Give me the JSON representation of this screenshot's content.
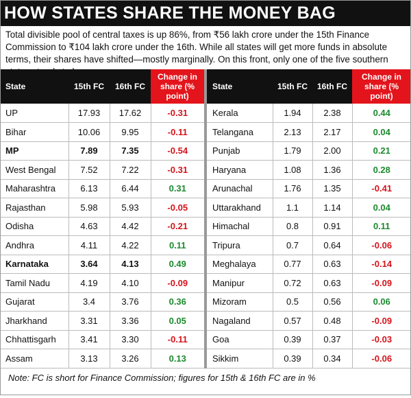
{
  "header": {
    "title": "HOW STATES SHARE THE MONEY BAG"
  },
  "intro": "Total divisible pool of central taxes is up 86%, from ₹56 lakh crore under the 15th Finance Commission to ₹104 lakh crore under the 16th. While all states will get more funds in absolute terms, their shares have shifted—mostly marginally. On this front, only one of the five southern states stands to lose",
  "columns": [
    "State",
    "15th FC",
    "16th FC",
    "Change in share (% point)"
  ],
  "tables": [
    {
      "rows": [
        [
          "UP",
          "17.93",
          "17.62",
          "-0.31"
        ],
        [
          "Bihar",
          "10.06",
          "9.95",
          "-0.11"
        ],
        [
          "MP",
          "7.89",
          "7.35",
          "-0.54"
        ],
        [
          "West Bengal",
          "7.52",
          "7.22",
          "-0.31"
        ],
        [
          "Maharashtra",
          "6.13",
          "6.44",
          "0.31"
        ],
        [
          "Rajasthan",
          "5.98",
          "5.93",
          "-0.05"
        ],
        [
          "Odisha",
          "4.63",
          "4.42",
          "-0.21"
        ],
        [
          "Andhra",
          "4.11",
          "4.22",
          "0.11"
        ],
        [
          "Karnataka",
          "3.64",
          "4.13",
          "0.49"
        ],
        [
          "Tamil Nadu",
          "4.19",
          "4.10",
          "-0.09"
        ],
        [
          "Gujarat",
          "3.4",
          "3.76",
          "0.36"
        ],
        [
          "Jharkhand",
          "3.31",
          "3.36",
          "0.05"
        ],
        [
          "Chhattisgarh",
          "3.41",
          "3.30",
          "-0.11"
        ],
        [
          "Assam",
          "3.13",
          "3.26",
          "0.13"
        ]
      ]
    },
    {
      "rows": [
        [
          "Kerala",
          "1.94",
          "2.38",
          "0.44"
        ],
        [
          "Telangana",
          "2.13",
          "2.17",
          "0.04"
        ],
        [
          "Punjab",
          "1.79",
          "2.00",
          "0.21"
        ],
        [
          "Haryana",
          "1.08",
          "1.36",
          "0.28"
        ],
        [
          "Arunachal",
          "1.76",
          "1.35",
          "-0.41"
        ],
        [
          "Uttarakhand",
          "1.1",
          "1.14",
          "0.04"
        ],
        [
          "Himachal",
          "0.8",
          "0.91",
          "0.11"
        ],
        [
          "Tripura",
          "0.7",
          "0.64",
          "-0.06"
        ],
        [
          "Meghalaya",
          "0.77",
          "0.63",
          "-0.14"
        ],
        [
          "Manipur",
          "0.72",
          "0.63",
          "-0.09"
        ],
        [
          "Mizoram",
          "0.5",
          "0.56",
          "0.06"
        ],
        [
          "Nagaland",
          "0.57",
          "0.48",
          "-0.09"
        ],
        [
          "Goa",
          "0.39",
          "0.37",
          "-0.03"
        ],
        [
          "Sikkim",
          "0.39",
          "0.34",
          "-0.06"
        ]
      ]
    }
  ],
  "note": "Note: FC is short for Finance Commission; figures for 15th & 16th FC are in %"
}
